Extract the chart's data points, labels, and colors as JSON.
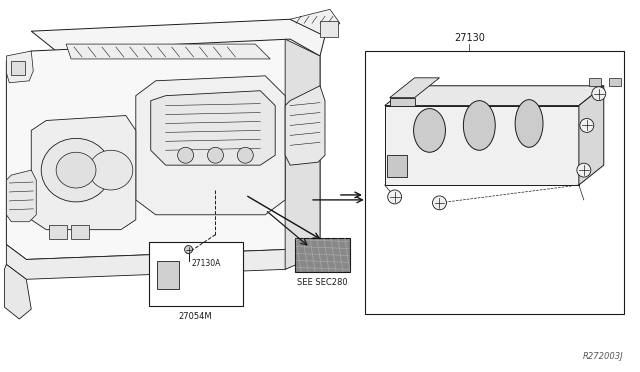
{
  "bg_color": "#ffffff",
  "fig_width": 6.4,
  "fig_height": 3.72,
  "dpi": 100,
  "label_27130": "27130",
  "label_27054M": "27054M",
  "label_27130A": "27130A",
  "label_secsec": "SEE SEC280",
  "label_ref": "R272003J",
  "line_color": "#1a1a1a",
  "line_color2": "#555555"
}
